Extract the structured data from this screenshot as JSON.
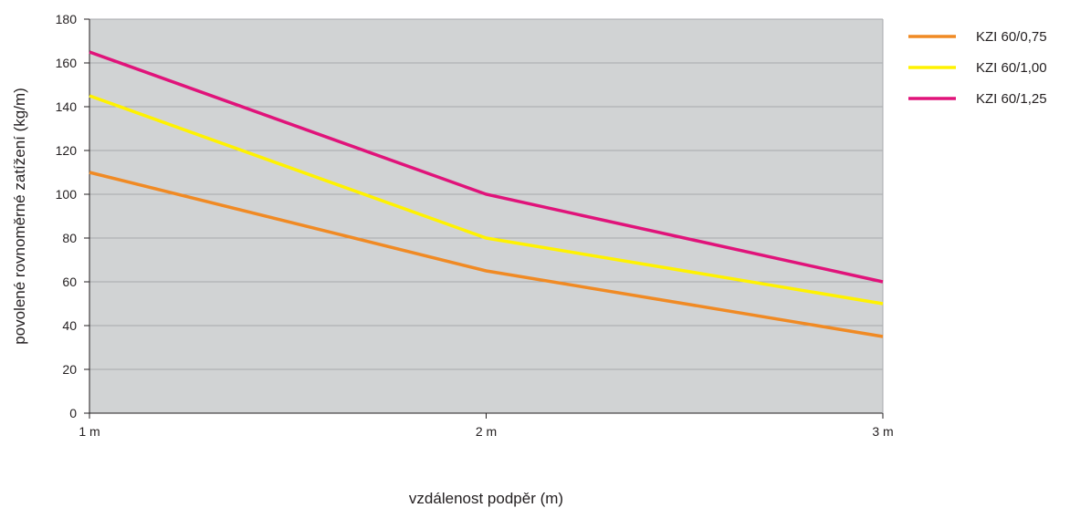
{
  "chart_data": {
    "type": "line",
    "categories": [
      "1 m",
      "2 m",
      "3 m"
    ],
    "series": [
      {
        "name": "KZI 60/0,75",
        "color": "#f08a24",
        "values": [
          110,
          65,
          35
        ]
      },
      {
        "name": "KZI 60/1,00",
        "color": "#fff200",
        "values": [
          145,
          80,
          50
        ]
      },
      {
        "name": "KZI 60/1,25",
        "color": "#e0137a",
        "values": [
          165,
          100,
          60
        ]
      }
    ],
    "xlabel": "vzdálenost podpěr (m)",
    "ylabel": "povolené rovnoměrné zatížení (kg/m)",
    "ylim": [
      0,
      180
    ],
    "yticks": [
      0,
      20,
      40,
      60,
      80,
      100,
      120,
      140,
      160,
      180
    ],
    "grid": true,
    "plot_background": "#d1d3d4",
    "gridline_color": "#a7a9ac",
    "legend_position": "right"
  }
}
